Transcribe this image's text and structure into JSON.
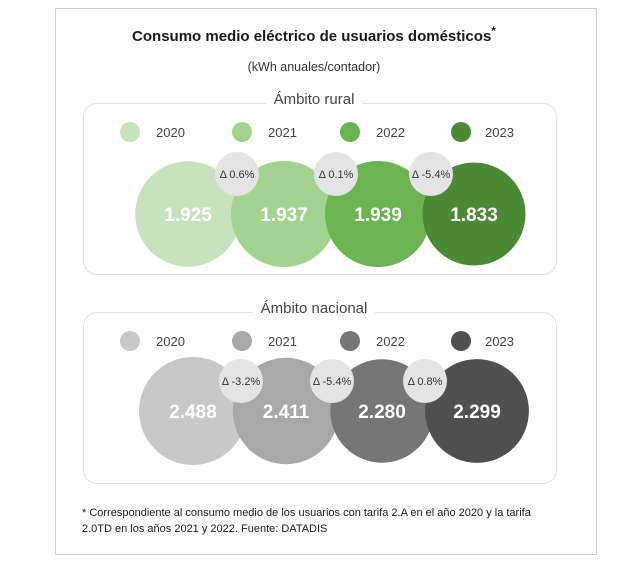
{
  "title": "Consumo medio eléctrico  de usuarios domésticos",
  "title_mark": "*",
  "subtitle": "(kWh anuales/contador)",
  "footnote": "* Correspondiente al consumo medio de los usuarios con tarifa 2.A en el año 2020 y la tarifa 2.0TD en los años 2021 y 2022. Fuente: DATADIS",
  "chart_data": [
    {
      "type": "bubble",
      "title": "Ámbito rural",
      "categories": [
        "2020",
        "2021",
        "2022",
        "2023"
      ],
      "values": [
        1925,
        1937,
        1939,
        1833
      ],
      "value_labels": [
        "1.925",
        "1.937",
        "1.939",
        "1.833"
      ],
      "delta_labels": [
        "Δ 0.6%",
        "Δ 0.1%",
        "Δ -5.4%"
      ],
      "colors": [
        "#c6e3bd",
        "#a2d391",
        "#6cb451",
        "#4a8a35"
      ],
      "legend": "top"
    },
    {
      "type": "bubble",
      "title": "Ámbito nacional",
      "categories": [
        "2020",
        "2021",
        "2022",
        "2023"
      ],
      "values": [
        2488,
        2411,
        2280,
        2299
      ],
      "value_labels": [
        "2.488",
        "2.411",
        "2.280",
        "2.299"
      ],
      "delta_labels": [
        "Δ -3.2%",
        "Δ -5.4%",
        "Δ 0.8%"
      ],
      "colors": [
        "#c8c8c8",
        "#a8a8a8",
        "#767676",
        "#4f4f4f"
      ],
      "legend": "top"
    }
  ]
}
